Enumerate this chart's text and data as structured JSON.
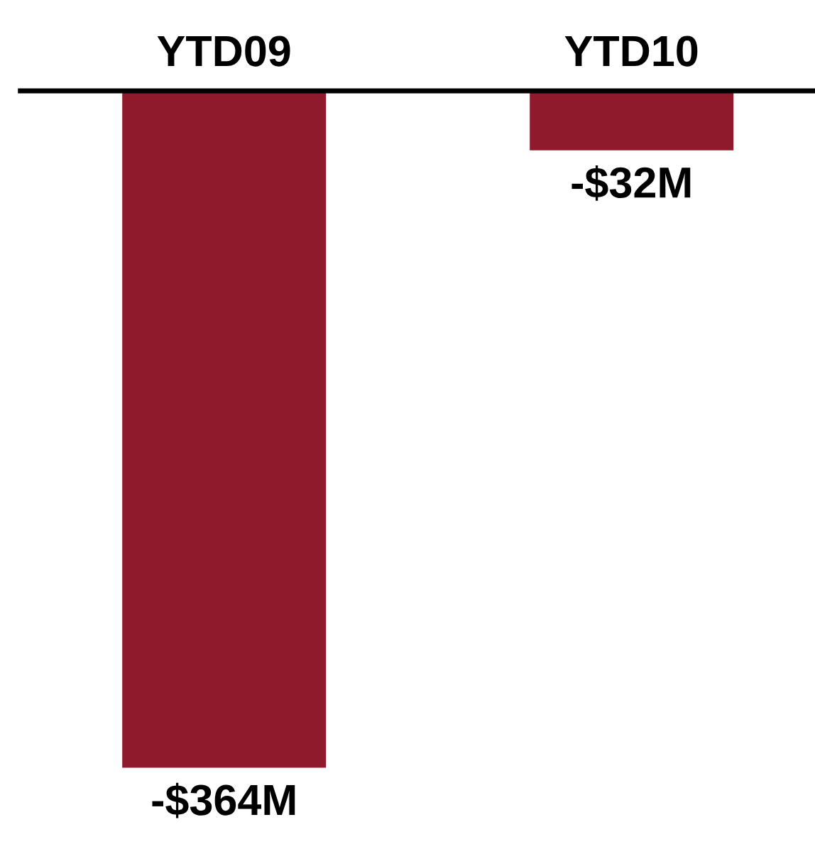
{
  "chart_data": {
    "type": "bar",
    "categories": [
      "YTD09",
      "YTD10"
    ],
    "values": [
      -364,
      -32
    ],
    "value_labels": [
      "-$364M",
      "-$32M"
    ],
    "color": "#8e1a2c",
    "grid": false,
    "legend": false
  }
}
